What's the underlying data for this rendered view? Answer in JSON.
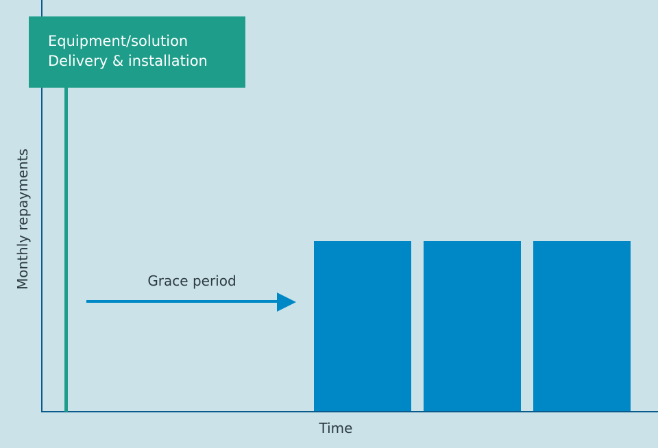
{
  "milestone": {
    "line1": "Equipment/solution",
    "line2": "Delivery & installation"
  },
  "grace_label": "Grace period",
  "x_axis_label": "Time",
  "y_axis_label": "Monthly repayments",
  "repayment_bars": 3,
  "colors": {
    "background": "#cbe3e8",
    "axis": "#0b5a8c",
    "milestone": "#1e9e8a",
    "bars": "#0088c6"
  }
}
